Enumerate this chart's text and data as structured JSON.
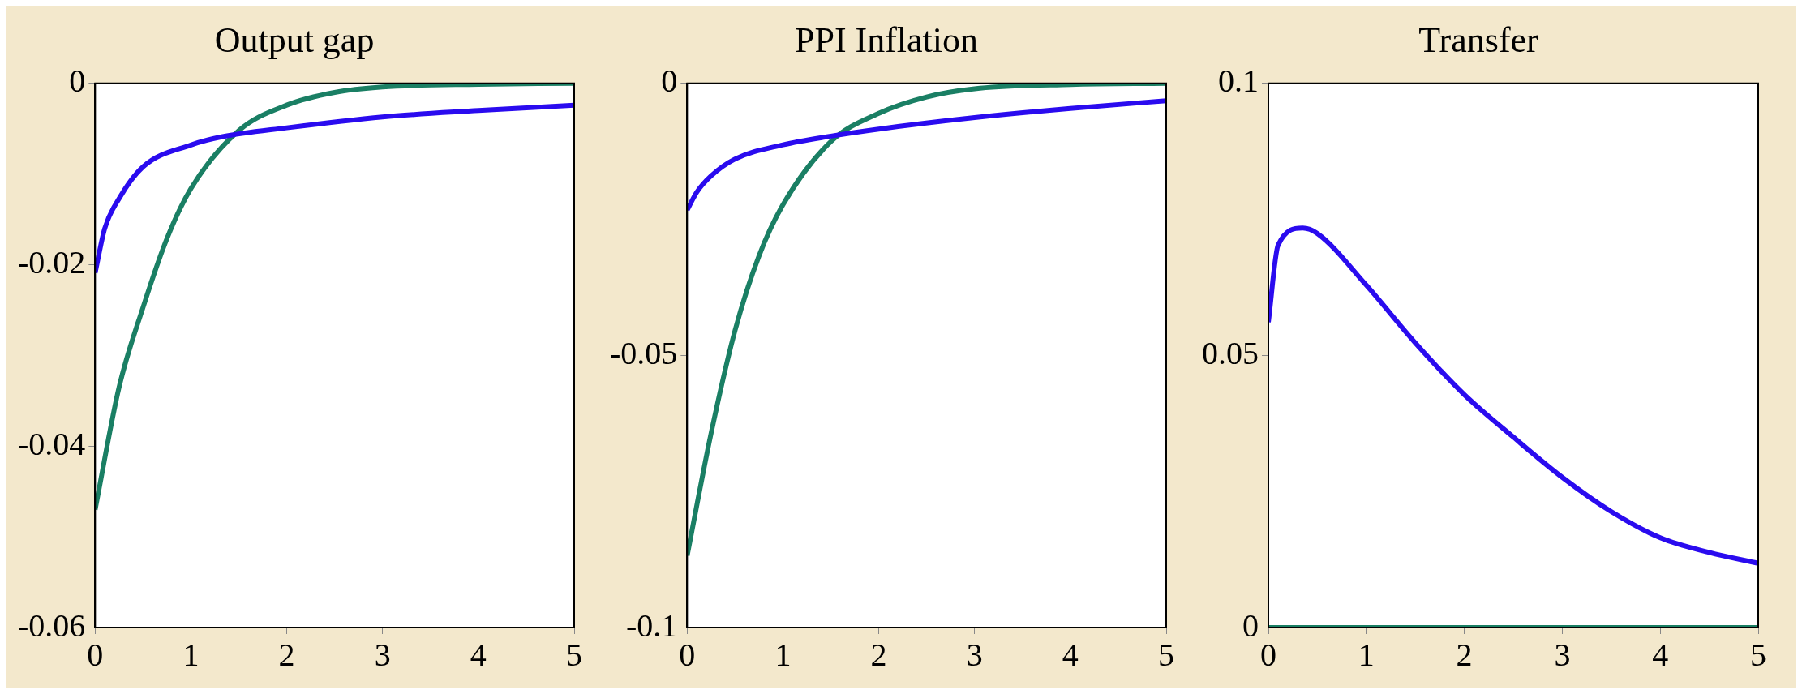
{
  "chart_data": [
    {
      "type": "line",
      "title": "Output gap",
      "xlim": [
        0,
        5
      ],
      "xticks": [
        0,
        1,
        2,
        3,
        4,
        5
      ],
      "ylim": [
        -0.06,
        0
      ],
      "yticks": [
        -0.06,
        -0.04,
        -0.02,
        0
      ],
      "series": [
        {
          "color": "#2a0bef",
          "x": [
            0,
            0.1,
            0.25,
            0.5,
            1,
            1.32,
            2,
            3,
            4,
            5
          ],
          "values": [
            -0.0209,
            -0.016,
            -0.0127,
            -0.0092,
            -0.0068,
            -0.0059,
            -0.0049,
            -0.0037,
            -0.003,
            -0.0024
          ]
        },
        {
          "color": "#1a7f64",
          "x": [
            0,
            0.25,
            0.5,
            0.75,
            1,
            1.5,
            2,
            2.5,
            3,
            4,
            5
          ],
          "values": [
            -0.047,
            -0.0335,
            -0.0247,
            -0.0171,
            -0.0116,
            -0.0052,
            -0.0024,
            -0.001,
            -0.0004,
            -0.0001,
            0
          ]
        }
      ]
    },
    {
      "type": "line",
      "title": "PPI Inflation",
      "xlim": [
        0,
        5
      ],
      "xticks": [
        0,
        1,
        2,
        3,
        4,
        5
      ],
      "ylim": [
        -0.1,
        0
      ],
      "yticks": [
        -0.1,
        -0.05,
        0
      ],
      "series": [
        {
          "color": "#2a0bef",
          "x": [
            0,
            0.1,
            0.25,
            0.5,
            1,
            1.5,
            2,
            3,
            4,
            5
          ],
          "values": [
            -0.0233,
            -0.02,
            -0.017,
            -0.0139,
            -0.0113,
            -0.0097,
            -0.0084,
            -0.0063,
            -0.0046,
            -0.0032
          ]
        },
        {
          "color": "#1a7f64",
          "x": [
            0,
            0.25,
            0.5,
            0.75,
            1,
            1.5,
            2,
            2.5,
            3,
            4,
            5
          ],
          "values": [
            -0.0868,
            -0.0643,
            -0.0454,
            -0.0317,
            -0.0223,
            -0.0107,
            -0.0055,
            -0.0025,
            -0.001,
            -0.0002,
            0
          ]
        }
      ]
    },
    {
      "type": "line",
      "title": "Transfer",
      "xlim": [
        0,
        5
      ],
      "xticks": [
        0,
        1,
        2,
        3,
        4,
        5
      ],
      "ylim": [
        0,
        0.1
      ],
      "yticks": [
        0,
        0.05,
        0.1
      ],
      "series": [
        {
          "color": "#2a0bef",
          "x": [
            0,
            0.1,
            0.35,
            0.5,
            1,
            1.5,
            2,
            2.5,
            3,
            3.5,
            4,
            4.5,
            5
          ],
          "values": [
            0.0561,
            0.0703,
            0.0734,
            0.0724,
            0.0629,
            0.0523,
            0.0428,
            0.035,
            0.0276,
            0.0213,
            0.0165,
            0.0138,
            0.0118
          ]
        },
        {
          "color": "#1a7f64",
          "x": [
            0,
            5
          ],
          "values": [
            0,
            0
          ]
        }
      ]
    }
  ]
}
